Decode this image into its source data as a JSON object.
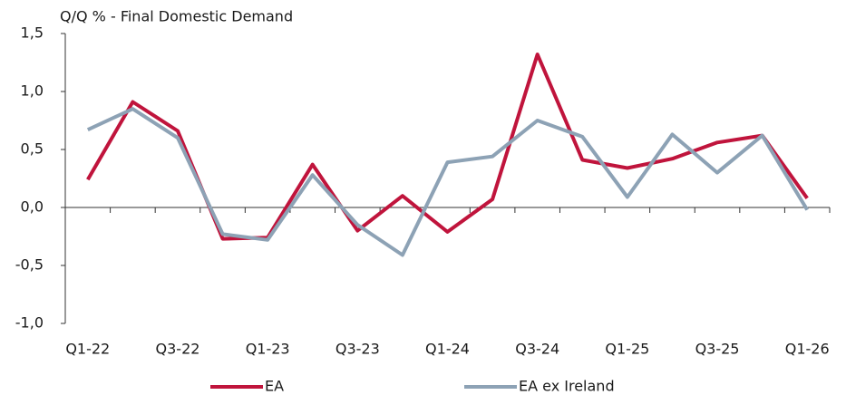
{
  "chart_data": {
    "type": "line",
    "title": "Q/Q % - Final Domestic Demand",
    "categories": [
      "Q1-22",
      null,
      "Q3-22",
      null,
      "Q1-23",
      null,
      "Q3-23",
      null,
      "Q1-24",
      null,
      "Q3-24",
      null,
      "Q1-25",
      null,
      "Q3-25",
      null,
      "Q1-26"
    ],
    "series": [
      {
        "name": "EA",
        "color": "#c0143c",
        "values": [
          0.24,
          0.91,
          0.66,
          -0.27,
          -0.26,
          0.37,
          -0.2,
          0.1,
          -0.21,
          0.07,
          1.32,
          0.41,
          0.34,
          0.42,
          0.56,
          0.62,
          0.08
        ]
      },
      {
        "name": "EA ex Ireland",
        "color": "#8da2b5",
        "values": [
          0.67,
          0.85,
          0.6,
          -0.23,
          -0.28,
          0.28,
          -0.15,
          -0.41,
          0.39,
          0.44,
          0.75,
          0.61,
          0.09,
          0.63,
          0.3,
          0.62,
          -0.02
        ]
      }
    ],
    "ylim": [
      -1.0,
      1.5
    ],
    "yticks": [
      {
        "value": -1.0,
        "label": "-1,0"
      },
      {
        "value": -0.5,
        "label": "-0,5"
      },
      {
        "value": 0.0,
        "label": "0,0"
      },
      {
        "value": 0.5,
        "label": "0,5"
      },
      {
        "value": 1.0,
        "label": "1,0"
      },
      {
        "value": 1.5,
        "label": "1,5"
      }
    ],
    "grid": false
  }
}
